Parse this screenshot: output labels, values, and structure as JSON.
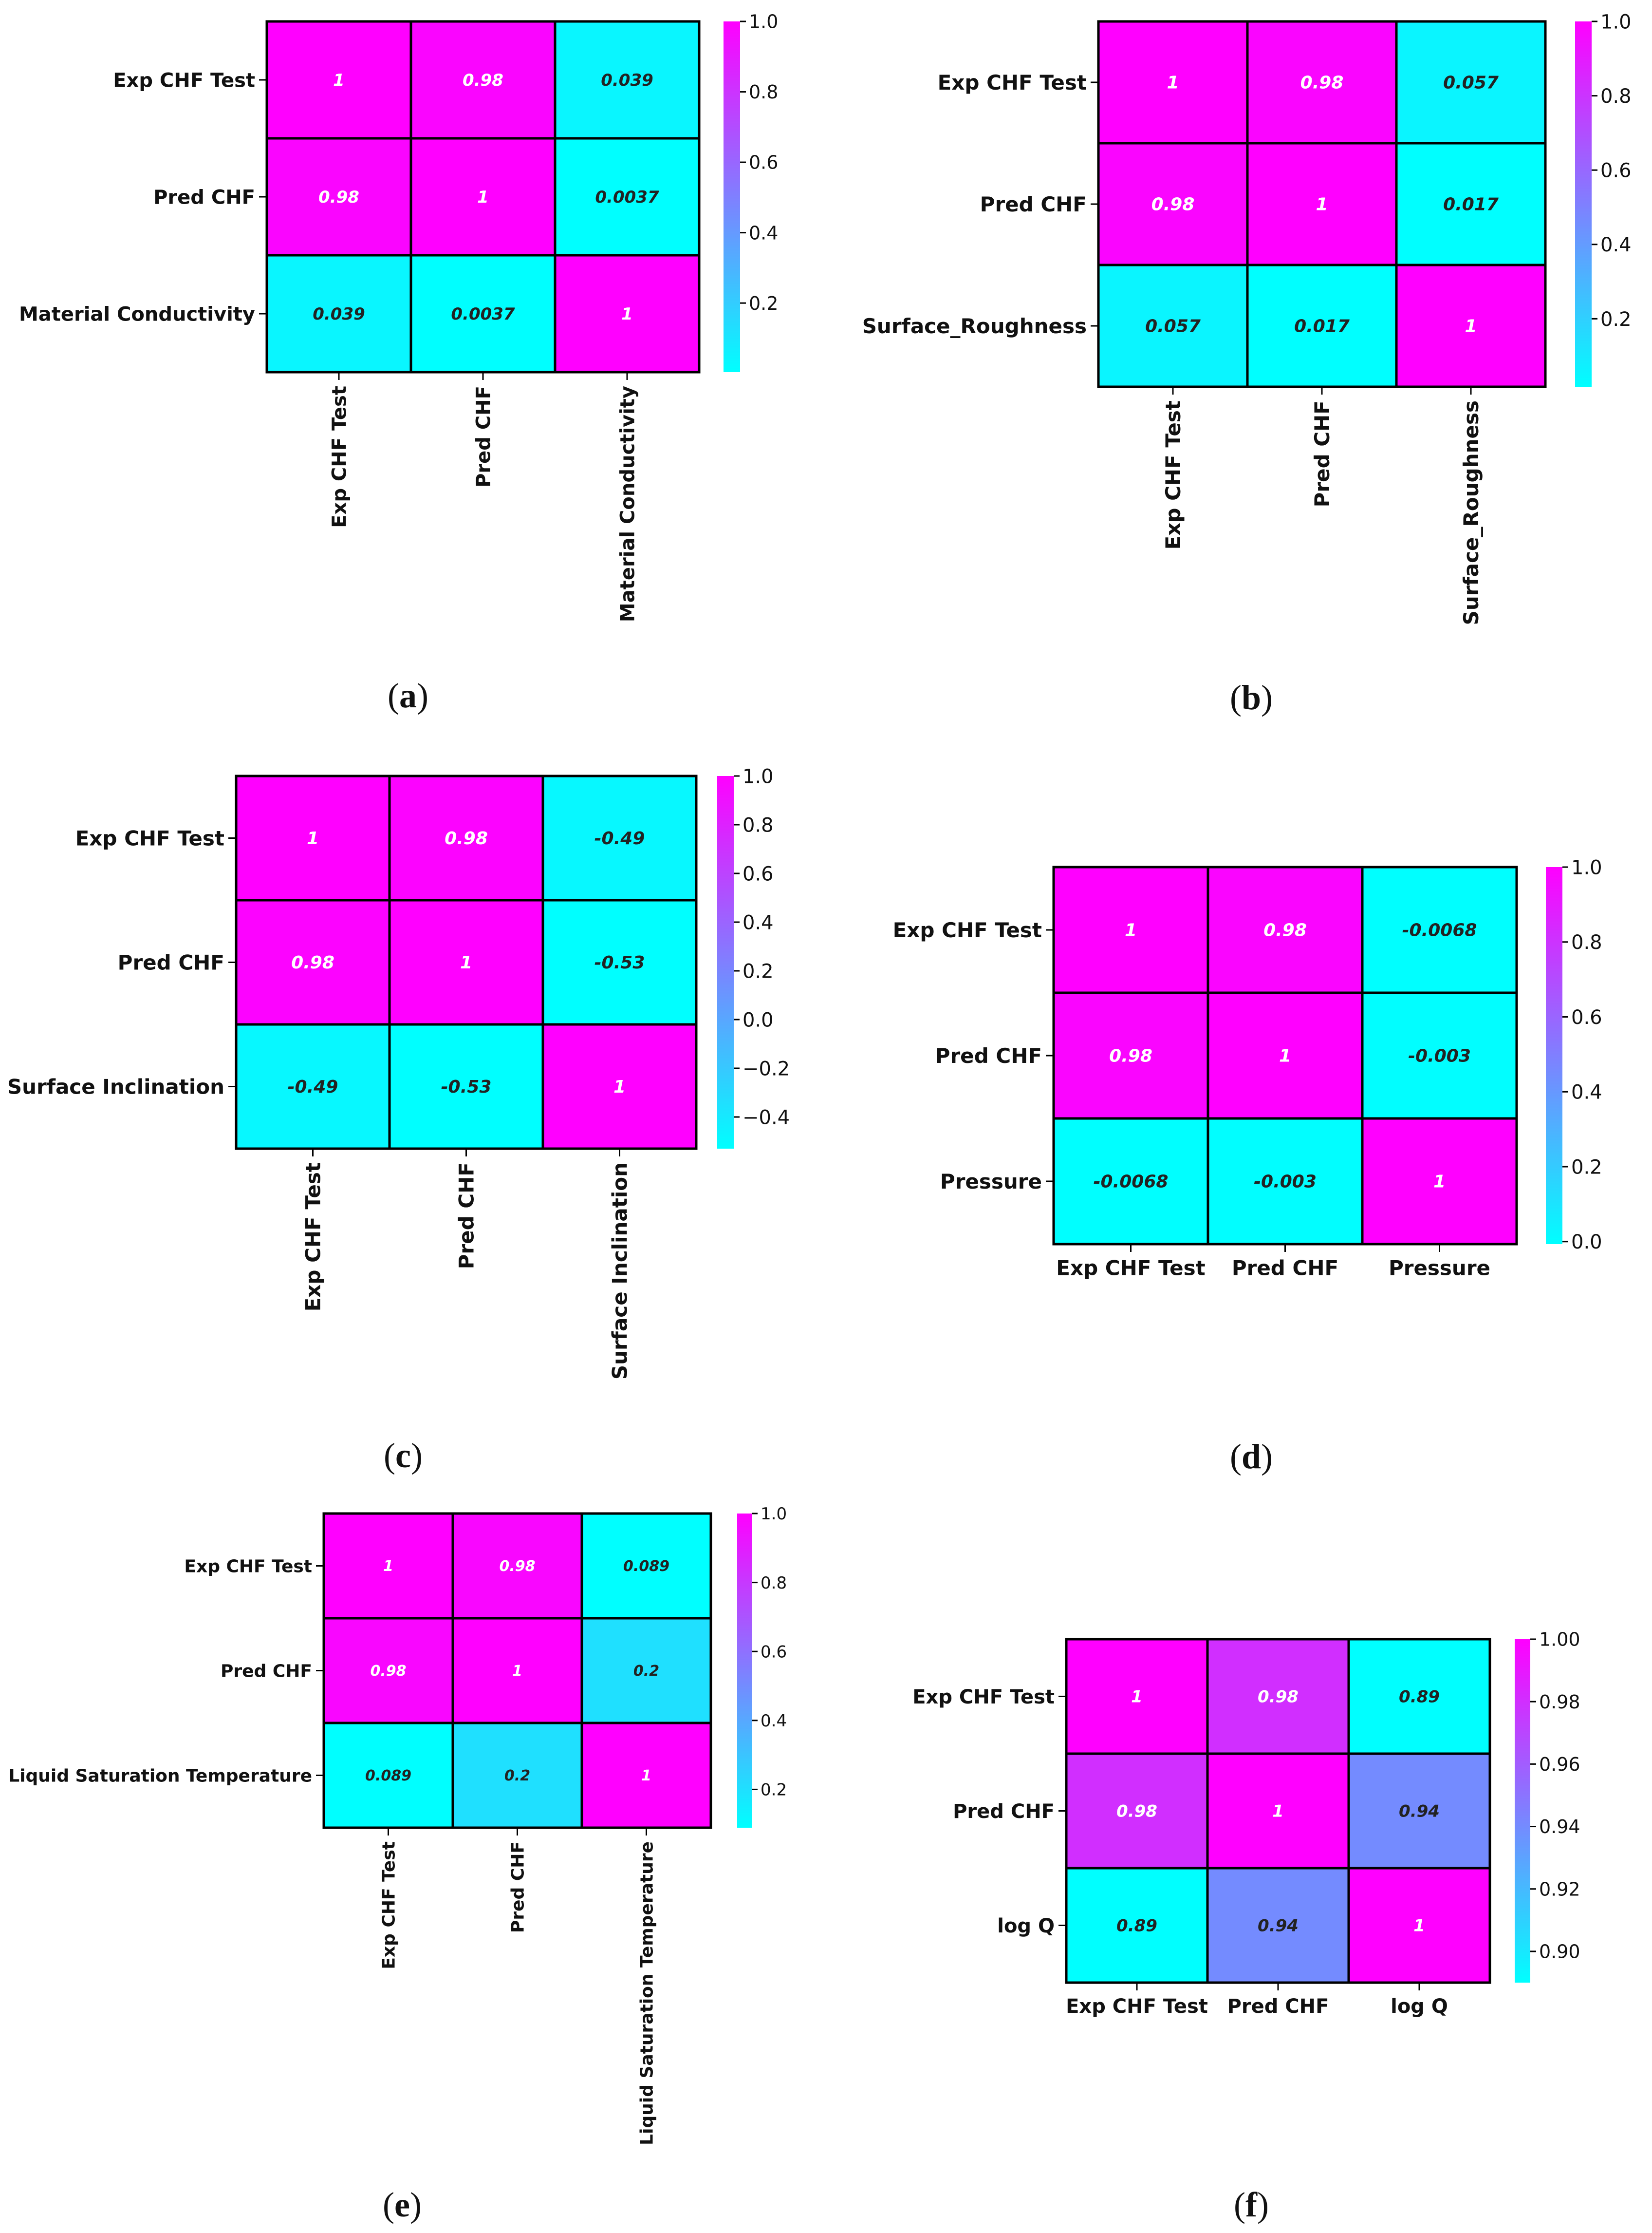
{
  "colormap": {
    "low": "#00ffff",
    "high": "#ff00ff",
    "name": "cool"
  },
  "chart_data": [
    {
      "type": "heatmap",
      "caption_letter": "a",
      "rows": [
        "Exp CHF Test",
        "Pred CHF",
        "Material Conductivity"
      ],
      "cols": [
        "Exp CHF Test",
        "Pred CHF",
        "Material Conductivity"
      ],
      "cells": [
        [
          "1",
          "0.98",
          "0.039"
        ],
        [
          "0.98",
          "1",
          "0.0037"
        ],
        [
          "0.039",
          "0.0037",
          "1"
        ]
      ],
      "values": [
        [
          1,
          0.98,
          0.039
        ],
        [
          0.98,
          1,
          0.0037
        ],
        [
          0.039,
          0.0037,
          1
        ]
      ],
      "vmin": 0.0037,
      "vmax": 1,
      "colorbar_ticks": [
        "0.2",
        "0.4",
        "0.6",
        "0.8",
        "1.0"
      ],
      "colorbar_tick_values": [
        0.2,
        0.4,
        0.6,
        0.8,
        1.0
      ],
      "xtick_rotation": "vertical"
    },
    {
      "type": "heatmap",
      "caption_letter": "b",
      "rows": [
        "Exp CHF Test",
        "Pred CHF",
        "Surface_Roughness"
      ],
      "cols": [
        "Exp CHF Test",
        "Pred CHF",
        "Surface_Roughness"
      ],
      "cells": [
        [
          "1",
          "0.98",
          "0.057"
        ],
        [
          "0.98",
          "1",
          "0.017"
        ],
        [
          "0.057",
          "0.017",
          "1"
        ]
      ],
      "values": [
        [
          1,
          0.98,
          0.057
        ],
        [
          0.98,
          1,
          0.017
        ],
        [
          0.057,
          0.017,
          1
        ]
      ],
      "vmin": 0.017,
      "vmax": 1,
      "colorbar_ticks": [
        "0.2",
        "0.4",
        "0.6",
        "0.8",
        "1.0"
      ],
      "colorbar_tick_values": [
        0.2,
        0.4,
        0.6,
        0.8,
        1.0
      ],
      "xtick_rotation": "vertical"
    },
    {
      "type": "heatmap",
      "caption_letter": "c",
      "rows": [
        "Exp CHF Test",
        "Pred CHF",
        "Surface Inclination"
      ],
      "cols": [
        "Exp CHF Test",
        "Pred CHF",
        "Surface Inclination"
      ],
      "cells": [
        [
          "1",
          "0.98",
          "-0.49"
        ],
        [
          "0.98",
          "1",
          "-0.53"
        ],
        [
          "-0.49",
          "-0.53",
          "1"
        ]
      ],
      "values": [
        [
          1,
          0.98,
          -0.49
        ],
        [
          0.98,
          1,
          -0.53
        ],
        [
          -0.49,
          -0.53,
          1
        ]
      ],
      "vmin": -0.53,
      "vmax": 1,
      "colorbar_ticks": [
        "−0.4",
        "−0.2",
        "0.0",
        "0.2",
        "0.4",
        "0.6",
        "0.8",
        "1.0"
      ],
      "colorbar_tick_values": [
        -0.4,
        -0.2,
        0.0,
        0.2,
        0.4,
        0.6,
        0.8,
        1.0
      ],
      "xtick_rotation": "vertical"
    },
    {
      "type": "heatmap",
      "caption_letter": "d",
      "rows": [
        "Exp CHF Test",
        "Pred CHF",
        "Pressure"
      ],
      "cols": [
        "Exp CHF Test",
        "Pred CHF",
        "Pressure"
      ],
      "cells": [
        [
          "1",
          "0.98",
          "-0.0068"
        ],
        [
          "0.98",
          "1",
          "-0.003"
        ],
        [
          "-0.0068",
          "-0.003",
          "1"
        ]
      ],
      "values": [
        [
          1,
          0.98,
          -0.0068
        ],
        [
          0.98,
          1,
          -0.003
        ],
        [
          -0.0068,
          -0.003,
          1
        ]
      ],
      "vmin": -0.0068,
      "vmax": 1,
      "colorbar_ticks": [
        "0.0",
        "0.2",
        "0.4",
        "0.6",
        "0.8",
        "1.0"
      ],
      "colorbar_tick_values": [
        0.0,
        0.2,
        0.4,
        0.6,
        0.8,
        1.0
      ],
      "xtick_rotation": "horizontal"
    },
    {
      "type": "heatmap",
      "caption_letter": "e",
      "rows": [
        "Exp CHF Test",
        "Pred CHF",
        "Liquid Saturation Temperature"
      ],
      "cols": [
        "Exp CHF Test",
        "Pred CHF",
        "Liquid Saturation Temperature"
      ],
      "cells": [
        [
          "1",
          "0.98",
          "0.089"
        ],
        [
          "0.98",
          "1",
          "0.2"
        ],
        [
          "0.089",
          "0.2",
          "1"
        ]
      ],
      "values": [
        [
          1,
          0.98,
          0.089
        ],
        [
          0.98,
          1,
          0.2
        ],
        [
          0.089,
          0.2,
          1
        ]
      ],
      "vmin": 0.089,
      "vmax": 1,
      "colorbar_ticks": [
        "0.2",
        "0.4",
        "0.6",
        "0.8",
        "1.0"
      ],
      "colorbar_tick_values": [
        0.2,
        0.4,
        0.6,
        0.8,
        1.0
      ],
      "xtick_rotation": "vertical"
    },
    {
      "type": "heatmap",
      "caption_letter": "f",
      "rows": [
        "Exp CHF Test",
        "Pred CHF",
        "log Q"
      ],
      "cols": [
        "Exp CHF Test",
        "Pred CHF",
        "log Q"
      ],
      "cells": [
        [
          "1",
          "0.98",
          "0.89"
        ],
        [
          "0.98",
          "1",
          "0.94"
        ],
        [
          "0.89",
          "0.94",
          "1"
        ]
      ],
      "values": [
        [
          1,
          0.98,
          0.89
        ],
        [
          0.98,
          1,
          0.94
        ],
        [
          0.89,
          0.94,
          1
        ]
      ],
      "vmin": 0.89,
      "vmax": 1,
      "colorbar_ticks": [
        "0.90",
        "0.92",
        "0.94",
        "0.96",
        "0.98",
        "1.00"
      ],
      "colorbar_tick_values": [
        0.9,
        0.92,
        0.94,
        0.96,
        0.98,
        1.0
      ],
      "xtick_rotation": "horizontal"
    }
  ]
}
